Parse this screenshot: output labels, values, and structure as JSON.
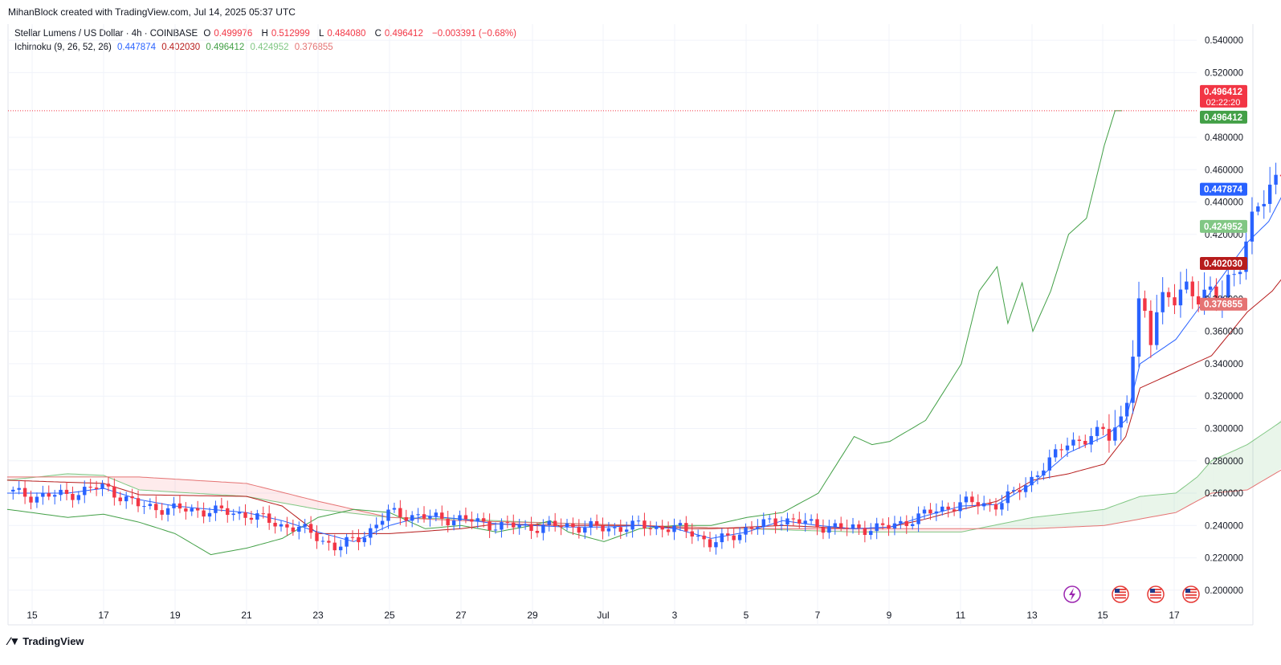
{
  "header": {
    "credit": "MihanBlock created with TradingView.com, Jul 14, 2025 05:37 UTC"
  },
  "legend": {
    "symbol": "Stellar Lumens / US Dollar · 4h · COINBASE",
    "o_label": "O",
    "o_value": "0.499976",
    "h_label": "H",
    "h_value": "0.512999",
    "l_label": "L",
    "l_value": "0.484080",
    "c_label": "C",
    "c_value": "0.496412",
    "change": "−0.003391 (−0.68%)",
    "indicator": "Ichimoku (9, 26, 52, 26)",
    "ind_values": [
      "0.447874",
      "0.402030",
      "0.496412",
      "0.424952",
      "0.376855"
    ]
  },
  "footer": {
    "brand": "TradingView"
  },
  "colors": {
    "up": "#2962ff",
    "down": "#f23645",
    "conversion": "#2962ff",
    "base": "#b71c1c",
    "lagging": "#43a047",
    "span_a": "#81c784",
    "span_b": "#e57373"
  },
  "chart_data": {
    "type": "candlestick",
    "ylim": [
      0.19,
      0.55
    ],
    "y_ticks": [
      "0.540000",
      "0.520000",
      "0.480000",
      "0.460000",
      "0.440000",
      "0.420000",
      "0.380000",
      "0.360000",
      "0.340000",
      "0.320000",
      "0.300000",
      "0.280000",
      "0.260000",
      "0.240000",
      "0.220000",
      "0.200000"
    ],
    "x_ticks": [
      "15",
      "17",
      "19",
      "21",
      "23",
      "25",
      "27",
      "29",
      "Jul",
      "3",
      "5",
      "7",
      "9",
      "11",
      "13",
      "15",
      "17"
    ],
    "price_labels": [
      {
        "value": 0.496412,
        "text": "0.496412",
        "sub": "02:22:20",
        "color": "#f23645"
      },
      {
        "value": 0.496412,
        "text": "0.496412",
        "color": "#43a047"
      },
      {
        "value": 0.447874,
        "text": "0.447874",
        "color": "#2962ff"
      },
      {
        "value": 0.424952,
        "text": "0.424952",
        "color": "#81c784"
      },
      {
        "value": 0.40203,
        "text": "0.402030",
        "color": "#b71c1c"
      },
      {
        "value": 0.376855,
        "text": "0.376855",
        "color": "#e57373"
      }
    ],
    "last_price": 0.496412,
    "event_icons": [
      "lightning-icon",
      "us-flag-icon",
      "us-flag-icon",
      "us-flag-icon"
    ]
  }
}
